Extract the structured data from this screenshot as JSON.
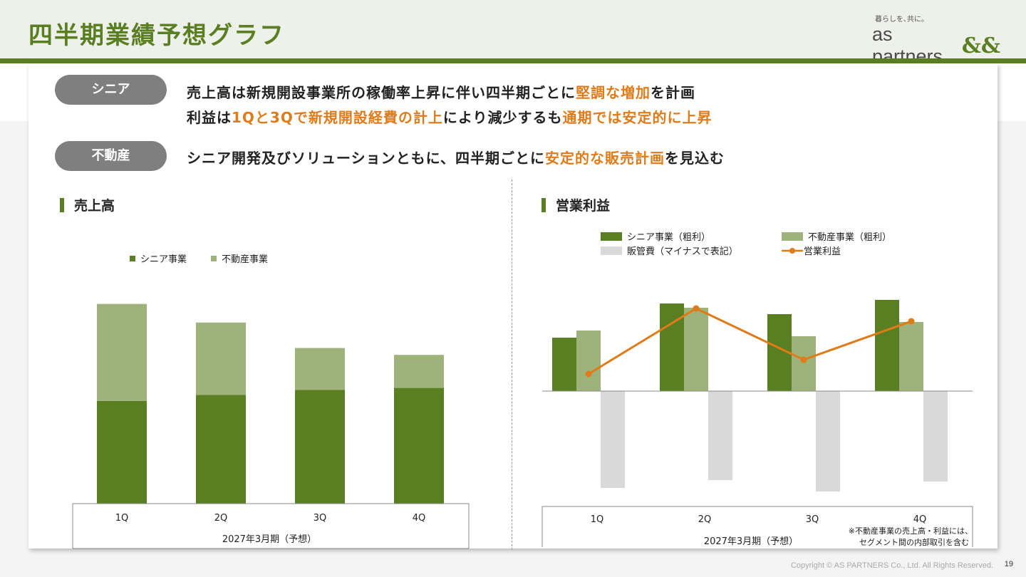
{
  "slide": {
    "title": "四半期業績予想グラフ",
    "logo_tagline": "暮らしを､共に｡",
    "logo_name": "as partners",
    "logo_mark": "&&",
    "copyright": "Copyright © AS PARTNERS Co., Ltd. All Rights Reserved.",
    "page_number": "19"
  },
  "summary": {
    "senior_label": "シニア",
    "senior_line1": [
      {
        "text": "売上高は新規開設事業所の稼働率上昇に伴い四半期ごとに",
        "hl": false
      },
      {
        "text": "堅調な増加",
        "hl": true
      },
      {
        "text": "を計画",
        "hl": false
      }
    ],
    "senior_line2": [
      {
        "text": "利益は",
        "hl": false
      },
      {
        "text": "1Qと3Qで新規開設経費の計上",
        "hl": true
      },
      {
        "text": "により減少するも",
        "hl": false
      },
      {
        "text": "通期では安定的に上昇",
        "hl": true
      }
    ],
    "realestate_label": "不動産",
    "realestate_line": [
      {
        "text": "シニア開発及びソリューションともに、四半期ごとに",
        "hl": false
      },
      {
        "text": "安定的な販売計画",
        "hl": true
      },
      {
        "text": "を見込む",
        "hl": false
      }
    ]
  },
  "colors": {
    "senior": "#5a7f22",
    "realestate": "#9db37a",
    "sga": "#d9d9d9",
    "profit_line": "#e07b1a"
  },
  "chart_data": [
    {
      "type": "bar",
      "stacked": true,
      "title": "売上高",
      "categories": [
        "1Q",
        "2Q",
        "3Q",
        "4Q"
      ],
      "period_label": "2027年3月期（予想）",
      "series": [
        {
          "name": "シニア事業",
          "values": [
            149,
            158,
            165,
            168
          ]
        },
        {
          "name": "不動産事業",
          "values": [
            141,
            105,
            61,
            48
          ]
        }
      ],
      "ylim": [
        0,
        300
      ],
      "legend_position": "top"
    },
    {
      "type": "bar",
      "title": "営業利益",
      "categories": [
        "1Q",
        "2Q",
        "3Q",
        "4Q"
      ],
      "period_label": "2027年3月期（予想）",
      "series": [
        {
          "name": "シニア事業（粗利）",
          "kind": "bar",
          "values": [
            75,
            123,
            108,
            128
          ]
        },
        {
          "name": "不動産事業（粗利）",
          "kind": "bar",
          "values": [
            85,
            117,
            77,
            97
          ]
        },
        {
          "name": "販管費（マイナスで表記）",
          "kind": "bar",
          "values": [
            -136,
            -125,
            -141,
            -127
          ]
        },
        {
          "name": "営業利益",
          "kind": "line",
          "values": [
            24,
            116,
            44,
            98
          ]
        }
      ],
      "ylim": [
        -160,
        140
      ],
      "legend_position": "top",
      "note_line1": "※不動産事業の売上高・利益には、",
      "note_line2": "セグメント間の内部取引を含む"
    }
  ]
}
